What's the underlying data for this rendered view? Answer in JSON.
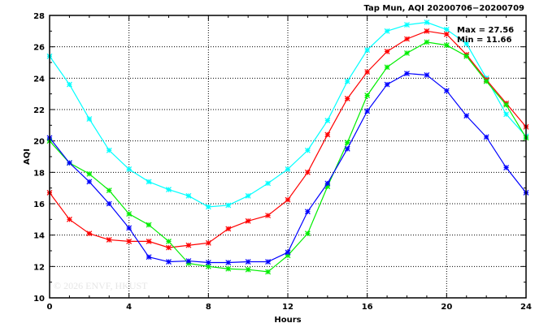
{
  "chart_data": {
    "type": "line",
    "title": "Tap Mun, AQI 20200706−20200709",
    "xlabel": "Hours",
    "ylabel": "AQI",
    "xlim": [
      0,
      24
    ],
    "ylim": [
      10,
      28
    ],
    "xticks": [
      "0",
      "4",
      "8",
      "12",
      "16",
      "20",
      "24"
    ],
    "yticks": [
      "10",
      "12",
      "14",
      "16",
      "18",
      "20",
      "22",
      "24",
      "26",
      "28"
    ],
    "grid": true,
    "annotations": {
      "max": "Max = 27.56",
      "min": "Min = 11.66"
    },
    "watermark": "© 2026  ENVF, HKUST",
    "x": [
      0,
      1,
      2,
      3,
      4,
      5,
      6,
      7,
      8,
      9,
      10,
      11,
      12,
      13,
      14,
      15,
      16,
      17,
      18,
      19,
      20,
      21,
      22,
      23,
      24
    ],
    "series": [
      {
        "name": "cyan",
        "color": "#00ffff",
        "values": [
          25.4,
          23.6,
          21.4,
          19.4,
          18.2,
          17.4,
          16.9,
          16.5,
          15.8,
          15.9,
          16.5,
          17.3,
          18.2,
          19.4,
          21.3,
          23.8,
          25.8,
          27.0,
          27.4,
          27.56,
          27.1,
          26.2,
          24.0,
          21.7,
          20.3
        ]
      },
      {
        "name": "red",
        "color": "#ff0000",
        "values": [
          16.7,
          15.0,
          14.1,
          13.7,
          13.6,
          13.6,
          13.2,
          13.35,
          13.5,
          14.4,
          14.9,
          15.25,
          16.25,
          18.0,
          20.4,
          22.7,
          24.4,
          25.7,
          26.5,
          27.0,
          26.8,
          25.5,
          23.9,
          22.4,
          20.9
        ]
      },
      {
        "name": "green",
        "color": "#00ee00",
        "values": [
          20.0,
          18.6,
          17.9,
          16.85,
          15.35,
          14.65,
          13.6,
          12.2,
          12.0,
          11.85,
          11.8,
          11.66,
          12.7,
          14.1,
          17.1,
          19.9,
          22.9,
          24.7,
          25.6,
          26.3,
          26.1,
          25.4,
          23.8,
          22.3,
          20.2
        ]
      },
      {
        "name": "blue",
        "color": "#0000ff",
        "values": [
          20.2,
          18.6,
          17.4,
          16.0,
          14.45,
          12.6,
          12.3,
          12.35,
          12.25,
          12.25,
          12.3,
          12.3,
          12.9,
          15.5,
          17.3,
          19.5,
          21.9,
          23.6,
          24.3,
          24.2,
          23.2,
          21.6,
          20.25,
          18.3,
          16.7
        ]
      }
    ]
  }
}
